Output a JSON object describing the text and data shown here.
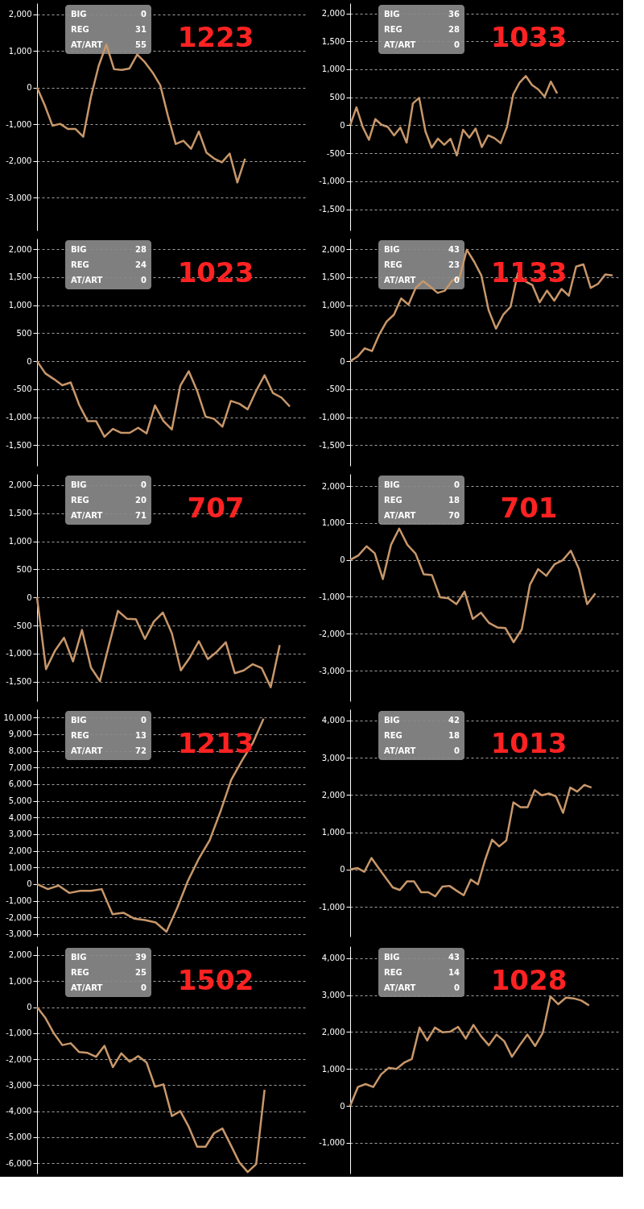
{
  "chart_data": [
    {
      "type": "line",
      "title": "1223",
      "annotations": [
        "BIG",
        "0",
        "REG",
        "31",
        "AT/ART",
        "55"
      ],
      "color": "#c8976a",
      "grid": "y",
      "tick_labels": "y",
      "ylim": [
        -3900,
        2300
      ],
      "yticks": [
        {
          "value": -3000,
          "label": "-3,000"
        },
        {
          "value": -2000,
          "label": "-2,000"
        },
        {
          "value": -1000,
          "label": "-1,000"
        },
        {
          "value": 0,
          "label": "0"
        },
        {
          "value": 1000,
          "label": "1,000"
        },
        {
          "value": 2000,
          "label": "2,000"
        }
      ],
      "categories": [
        null,
        null,
        null,
        null,
        null,
        null,
        null,
        null,
        null,
        null,
        null,
        null,
        null,
        null,
        null,
        null,
        null,
        null,
        null,
        null,
        null,
        null,
        null,
        null,
        null,
        null,
        null,
        null,
        null,
        null,
        null,
        null,
        null,
        null,
        null,
        null
      ],
      "values": [
        0,
        -480,
        -1040,
        -990,
        -1130,
        -1130,
        -1340,
        -250,
        590,
        1170,
        500,
        480,
        520,
        900,
        690,
        410,
        60,
        -780,
        -1540,
        -1450,
        -1670,
        -1200,
        -1780,
        -1940,
        -2040,
        -1800,
        -2590,
        -1940,
        null,
        null,
        null,
        null,
        null,
        null,
        null,
        null
      ]
    },
    {
      "type": "line",
      "title": "1033",
      "annotations": [
        "BIG",
        "36",
        "REG",
        "28",
        "AT/ART",
        "0"
      ],
      "color": "#c8976a",
      "grid": "y",
      "tick_labels": "y",
      "ylim": [
        -1880,
        2180
      ],
      "yticks": [
        {
          "value": -1500,
          "label": "-1,500"
        },
        {
          "value": -1000,
          "label": "-1,000"
        },
        {
          "value": -500,
          "label": "-500"
        },
        {
          "value": 0,
          "label": "0"
        },
        {
          "value": 500,
          "label": "500"
        },
        {
          "value": 1000,
          "label": "1,000"
        },
        {
          "value": 1500,
          "label": "1,500"
        },
        {
          "value": 2000,
          "label": "2,000"
        }
      ],
      "categories": [
        null,
        null,
        null,
        null,
        null,
        null,
        null,
        null,
        null,
        null,
        null,
        null,
        null,
        null,
        null,
        null,
        null,
        null,
        null,
        null,
        null,
        null,
        null,
        null,
        null,
        null,
        null,
        null,
        null,
        null,
        null,
        null,
        null,
        null,
        null,
        null,
        null,
        null,
        null,
        null,
        null,
        null,
        null,
        null
      ],
      "values": [
        0,
        320,
        -30,
        -260,
        110,
        10,
        -30,
        -180,
        -40,
        -310,
        390,
        490,
        -110,
        -400,
        -240,
        -350,
        -240,
        -540,
        -80,
        -220,
        -60,
        -390,
        -180,
        -230,
        -320,
        -30,
        550,
        760,
        880,
        720,
        640,
        510,
        780,
        570,
        null,
        null,
        null,
        null,
        null,
        null,
        null,
        null,
        null,
        null
      ]
    },
    {
      "type": "line",
      "title": "1023",
      "annotations": [
        "BIG",
        "28",
        "REG",
        "24",
        "AT/ART",
        "0"
      ],
      "color": "#c8976a",
      "grid": "y",
      "tick_labels": "y",
      "ylim": [
        -1870,
        2190
      ],
      "yticks": [
        {
          "value": -1500,
          "label": "-1,500"
        },
        {
          "value": -1000,
          "label": "-1,000"
        },
        {
          "value": -500,
          "label": "-500"
        },
        {
          "value": 0,
          "label": "0"
        },
        {
          "value": 500,
          "label": "500"
        },
        {
          "value": 1000,
          "label": "1,000"
        },
        {
          "value": 1500,
          "label": "1,500"
        },
        {
          "value": 2000,
          "label": "2,000"
        }
      ],
      "categories": [
        null,
        null,
        null,
        null,
        null,
        null,
        null,
        null,
        null,
        null,
        null,
        null,
        null,
        null,
        null,
        null,
        null,
        null,
        null,
        null,
        null,
        null,
        null,
        null,
        null,
        null,
        null,
        null,
        null,
        null,
        null,
        null,
        null
      ],
      "values": [
        0,
        -220,
        -320,
        -430,
        -380,
        -780,
        -1070,
        -1070,
        -1350,
        -1210,
        -1280,
        -1280,
        -1190,
        -1290,
        -790,
        -1070,
        -1220,
        -440,
        -180,
        -530,
        -990,
        -1030,
        -1170,
        -710,
        -760,
        -860,
        -530,
        -250,
        -570,
        -650,
        -810,
        null,
        null
      ]
    },
    {
      "type": "line",
      "title": "1133",
      "annotations": [
        "BIG",
        "43",
        "REG",
        "23",
        "AT/ART",
        "0"
      ],
      "color": "#c8976a",
      "grid": "y",
      "tick_labels": "y",
      "ylim": [
        -1870,
        2190
      ],
      "yticks": [
        {
          "value": -1500,
          "label": "-1,500"
        },
        {
          "value": -1000,
          "label": "-1,000"
        },
        {
          "value": -500,
          "label": "-500"
        },
        {
          "value": 0,
          "label": "0"
        },
        {
          "value": 500,
          "label": "500"
        },
        {
          "value": 1000,
          "label": "1,000"
        },
        {
          "value": 1500,
          "label": "1,500"
        },
        {
          "value": 2000,
          "label": "2,000"
        }
      ],
      "categories": [
        null,
        null,
        null,
        null,
        null,
        null,
        null,
        null,
        null,
        null,
        null,
        null,
        null,
        null,
        null,
        null,
        null,
        null,
        null,
        null,
        null,
        null,
        null,
        null,
        null,
        null,
        null,
        null,
        null,
        null,
        null,
        null,
        null,
        null,
        null,
        null,
        null,
        null
      ],
      "values": [
        0,
        80,
        230,
        180,
        480,
        710,
        830,
        1120,
        1010,
        1310,
        1430,
        1330,
        1220,
        1260,
        1440,
        1490,
        1990,
        1780,
        1530,
        910,
        580,
        830,
        970,
        1570,
        1430,
        1360,
        1050,
        1260,
        1080,
        1290,
        1170,
        1690,
        1730,
        1310,
        1380,
        1550,
        1530,
        null
      ]
    },
    {
      "type": "line",
      "title": "707",
      "annotations": [
        "BIG",
        "0",
        "REG",
        "20",
        "AT/ART",
        "71"
      ],
      "color": "#c8976a",
      "grid": "y",
      "tick_labels": "y",
      "ylim": [
        -1850,
        2200
      ],
      "yticks": [
        {
          "value": -1500,
          "label": "-1,500"
        },
        {
          "value": -1000,
          "label": "-1,000"
        },
        {
          "value": -500,
          "label": "-500"
        },
        {
          "value": 0,
          "label": "0"
        },
        {
          "value": 500,
          "label": "500"
        },
        {
          "value": 1000,
          "label": "1,000"
        },
        {
          "value": 1500,
          "label": "1,500"
        },
        {
          "value": 2000,
          "label": "2,000"
        }
      ],
      "categories": [
        null,
        null,
        null,
        null,
        null,
        null,
        null,
        null,
        null,
        null,
        null,
        null,
        null,
        null,
        null,
        null,
        null,
        null,
        null,
        null,
        null,
        null,
        null,
        null,
        null,
        null,
        null,
        null,
        null,
        null,
        null
      ],
      "values": [
        0,
        -1280,
        -950,
        -720,
        -1140,
        -580,
        -1250,
        -1490,
        -850,
        -240,
        -380,
        -390,
        -740,
        -430,
        -270,
        -640,
        -1300,
        -1070,
        -780,
        -1100,
        -970,
        -800,
        -1350,
        -1300,
        -1190,
        -1260,
        -1600,
        -850,
        null,
        null,
        null
      ]
    },
    {
      "type": "line",
      "title": "701",
      "annotations": [
        "BIG",
        "0",
        "REG",
        "18",
        "AT/ART",
        "70"
      ],
      "color": "#c8976a",
      "grid": "y",
      "tick_labels": "y",
      "ylim": [
        -3830,
        2330
      ],
      "yticks": [
        {
          "value": -3000,
          "label": "-3,000"
        },
        {
          "value": -2000,
          "label": "-2,000"
        },
        {
          "value": -1000,
          "label": "-1,000"
        },
        {
          "value": 0,
          "label": "0"
        },
        {
          "value": 1000,
          "label": "1,000"
        },
        {
          "value": 2000,
          "label": "2,000"
        }
      ],
      "categories": [
        null,
        null,
        null,
        null,
        null,
        null,
        null,
        null,
        null,
        null,
        null,
        null,
        null,
        null,
        null,
        null,
        null,
        null,
        null,
        null,
        null,
        null,
        null,
        null,
        null,
        null,
        null,
        null,
        null,
        null,
        null,
        null,
        null,
        null
      ],
      "values": [
        0,
        120,
        370,
        180,
        -520,
        410,
        850,
        410,
        170,
        -390,
        -410,
        -1010,
        -1040,
        -1200,
        -860,
        -1600,
        -1430,
        -1710,
        -1830,
        -1850,
        -2230,
        -1880,
        -670,
        -250,
        -430,
        -120,
        -10,
        250,
        -250,
        -1200,
        -910,
        null,
        null,
        null
      ]
    },
    {
      "type": "line",
      "title": "1213",
      "annotations": [
        "BIG",
        "0",
        "REG",
        "13",
        "AT/ART",
        "72"
      ],
      "color": "#c8976a",
      "grid": "y",
      "tick_labels": "y",
      "ylim": [
        -3150,
        10500
      ],
      "yticks": [
        {
          "value": -3000,
          "label": "-3,000"
        },
        {
          "value": -2000,
          "label": "-2,000"
        },
        {
          "value": -1000,
          "label": "-1,000"
        },
        {
          "value": 0,
          "label": "0"
        },
        {
          "value": 1000,
          "label": "1,000"
        },
        {
          "value": 2000,
          "label": "2,000"
        },
        {
          "value": 3000,
          "label": "3,000"
        },
        {
          "value": 4000,
          "label": "4,000"
        },
        {
          "value": 5000,
          "label": "5,000"
        },
        {
          "value": 6000,
          "label": "6,000"
        },
        {
          "value": 7000,
          "label": "7,000"
        },
        {
          "value": 8000,
          "label": "8,000"
        },
        {
          "value": 9000,
          "label": "9,000"
        },
        {
          "value": 10000,
          "label": "10,000"
        }
      ],
      "categories": [
        null,
        null,
        null,
        null,
        null,
        null,
        null,
        null,
        null,
        null,
        null,
        null,
        null,
        null,
        null,
        null,
        null,
        null,
        null,
        null,
        null,
        null,
        null,
        null,
        null,
        null
      ],
      "values": [
        0,
        -300,
        -90,
        -530,
        -400,
        -400,
        -300,
        -1810,
        -1720,
        -2070,
        -2160,
        -2300,
        -2860,
        -1420,
        210,
        1530,
        2630,
        4350,
        6260,
        7420,
        8470,
        9930,
        null,
        null,
        null,
        null
      ]
    },
    {
      "type": "line",
      "title": "1013",
      "annotations": [
        "BIG",
        "42",
        "REG",
        "18",
        "AT/ART",
        "0"
      ],
      "color": "#c8976a",
      "grid": "y",
      "tick_labels": "y",
      "ylim": [
        -1800,
        4300
      ],
      "yticks": [
        {
          "value": -1000,
          "label": "-1,000"
        },
        {
          "value": 0,
          "label": "0"
        },
        {
          "value": 1000,
          "label": "1,000"
        },
        {
          "value": 2000,
          "label": "2,000"
        },
        {
          "value": 3000,
          "label": "3,000"
        },
        {
          "value": 4000,
          "label": "4,000"
        }
      ],
      "categories": [
        null,
        null,
        null,
        null,
        null,
        null,
        null,
        null,
        null,
        null,
        null,
        null,
        null,
        null,
        null,
        null,
        null,
        null,
        null,
        null,
        null,
        null,
        null,
        null,
        null,
        null,
        null,
        null,
        null,
        null,
        null,
        null,
        null,
        null,
        null,
        null,
        null,
        null,
        null
      ],
      "values": [
        0,
        40,
        -60,
        310,
        40,
        -220,
        -480,
        -550,
        -320,
        -320,
        -610,
        -610,
        -720,
        -460,
        -440,
        -570,
        -690,
        -270,
        -400,
        250,
        800,
        620,
        780,
        1800,
        1670,
        1670,
        2130,
        1990,
        2040,
        1960,
        1520,
        2200,
        2090,
        2270,
        2200,
        null,
        null,
        null,
        null
      ]
    },
    {
      "type": "line",
      "title": "1502",
      "annotations": [
        "BIG",
        "39",
        "REG",
        "25",
        "AT/ART",
        "0"
      ],
      "color": "#c8976a",
      "grid": "y",
      "tick_labels": "y",
      "ylim": [
        -6400,
        2340
      ],
      "yticks": [
        {
          "value": -6000,
          "label": "-6,000"
        },
        {
          "value": -5000,
          "label": "-5,000"
        },
        {
          "value": -4000,
          "label": "-4,000"
        },
        {
          "value": -3000,
          "label": "-3,000"
        },
        {
          "value": -2000,
          "label": "-2,000"
        },
        {
          "value": -1000,
          "label": "-1,000"
        },
        {
          "value": 0,
          "label": "0"
        },
        {
          "value": 1000,
          "label": "1,000"
        },
        {
          "value": 2000,
          "label": "2,000"
        }
      ],
      "categories": [
        null,
        null,
        null,
        null,
        null,
        null,
        null,
        null,
        null,
        null,
        null,
        null,
        null,
        null,
        null,
        null,
        null,
        null,
        null,
        null,
        null,
        null,
        null,
        null,
        null,
        null,
        null,
        null,
        null,
        null,
        null,
        null,
        null
      ],
      "values": [
        0,
        -420,
        -1010,
        -1460,
        -1390,
        -1730,
        -1760,
        -1910,
        -1490,
        -2310,
        -1780,
        -2100,
        -1880,
        -2130,
        -3060,
        -2970,
        -4190,
        -4000,
        -4600,
        -5370,
        -5370,
        -4850,
        -4670,
        -5310,
        -5970,
        -6340,
        -6040,
        -3180,
        null,
        null,
        null,
        null,
        null
      ]
    },
    {
      "type": "line",
      "title": "1028",
      "annotations": [
        "BIG",
        "43",
        "REG",
        "14",
        "AT/ART",
        "0"
      ],
      "color": "#c8976a",
      "grid": "y",
      "tick_labels": "y",
      "ylim": [
        -1830,
        4320
      ],
      "yticks": [
        {
          "value": -1000,
          "label": "-1,000"
        },
        {
          "value": 0,
          "label": "0"
        },
        {
          "value": 1000,
          "label": "1,000"
        },
        {
          "value": 2000,
          "label": "2,000"
        },
        {
          "value": 3000,
          "label": "3,000"
        },
        {
          "value": 4000,
          "label": "4,000"
        }
      ],
      "categories": [
        null,
        null,
        null,
        null,
        null,
        null,
        null,
        null,
        null,
        null,
        null,
        null,
        null,
        null,
        null,
        null,
        null,
        null,
        null,
        null,
        null,
        null,
        null,
        null,
        null,
        null,
        null,
        null,
        null,
        null,
        null,
        null,
        null,
        null,
        null,
        null
      ],
      "values": [
        0,
        510,
        590,
        510,
        850,
        1030,
        1000,
        1170,
        1270,
        2120,
        1770,
        2120,
        1990,
        2010,
        2140,
        1820,
        2190,
        1880,
        1640,
        1930,
        1750,
        1330,
        1640,
        1930,
        1620,
        1980,
        2960,
        2750,
        2930,
        2910,
        2850,
        2720,
        null,
        null,
        null,
        null
      ]
    }
  ]
}
